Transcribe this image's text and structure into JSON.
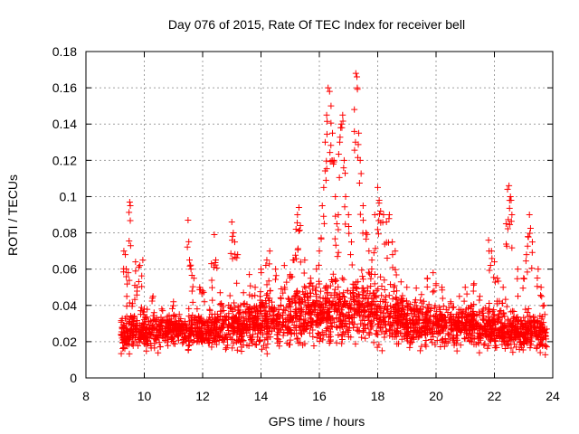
{
  "chart_data": {
    "type": "scatter",
    "title": "Day 076 of 2015, Rate Of TEC Index for receiver bell",
    "xlabel": "GPS time / hours",
    "ylabel": "ROTI / TECUs",
    "xlim": [
      8,
      24
    ],
    "ylim": [
      0,
      0.18
    ],
    "xticks": [
      8,
      10,
      12,
      14,
      16,
      18,
      20,
      22,
      24
    ],
    "yticks": [
      0,
      0.02,
      0.04,
      0.06,
      0.08,
      0.1,
      0.12,
      0.14,
      0.16,
      0.18
    ],
    "xtick_labels": [
      "8",
      "10",
      "12",
      "14",
      "16",
      "18",
      "20",
      "22",
      "24"
    ],
    "ytick_labels": [
      "0",
      "0.02",
      "0.04",
      "0.06",
      "0.08",
      "0.1",
      "0.12",
      "0.14",
      "0.16",
      "0.18"
    ],
    "grid": true,
    "marker": "+",
    "color": "#ff0000",
    "series": [
      {
        "name": "ROTI",
        "points": [
          [
            9.2,
            0.024
          ],
          [
            9.3,
            0.07
          ],
          [
            9.35,
            0.068
          ],
          [
            9.4,
            0.045
          ],
          [
            9.45,
            0.058
          ],
          [
            9.5,
            0.097
          ],
          [
            9.52,
            0.095
          ],
          [
            9.6,
            0.041
          ],
          [
            9.7,
            0.064
          ],
          [
            9.75,
            0.05
          ],
          [
            9.85,
            0.062
          ],
          [
            9.95,
            0.065
          ],
          [
            10.0,
            0.038
          ],
          [
            10.3,
            0.045
          ],
          [
            10.6,
            0.038
          ],
          [
            11.0,
            0.042
          ],
          [
            11.2,
            0.035
          ],
          [
            11.5,
            0.087
          ],
          [
            11.55,
            0.065
          ],
          [
            11.6,
            0.06
          ],
          [
            11.7,
            0.055
          ],
          [
            11.9,
            0.05
          ],
          [
            12.0,
            0.048
          ],
          [
            12.3,
            0.063
          ],
          [
            12.4,
            0.079
          ],
          [
            12.45,
            0.065
          ],
          [
            12.6,
            0.047
          ],
          [
            13.0,
            0.086
          ],
          [
            13.05,
            0.08
          ],
          [
            13.1,
            0.075
          ],
          [
            13.2,
            0.068
          ],
          [
            13.4,
            0.047
          ],
          [
            13.6,
            0.057
          ],
          [
            13.8,
            0.05
          ],
          [
            14.0,
            0.06
          ],
          [
            14.2,
            0.065
          ],
          [
            14.3,
            0.07
          ],
          [
            14.5,
            0.06
          ],
          [
            14.8,
            0.062
          ],
          [
            15.0,
            0.057
          ],
          [
            15.1,
            0.065
          ],
          [
            15.2,
            0.082
          ],
          [
            15.25,
            0.09
          ],
          [
            15.3,
            0.094
          ],
          [
            15.35,
            0.084
          ],
          [
            15.5,
            0.065
          ],
          [
            15.7,
            0.055
          ],
          [
            15.9,
            0.06
          ],
          [
            16.0,
            0.07
          ],
          [
            16.1,
            0.095
          ],
          [
            16.15,
            0.105
          ],
          [
            16.2,
            0.13
          ],
          [
            16.25,
            0.145
          ],
          [
            16.3,
            0.16
          ],
          [
            16.35,
            0.158
          ],
          [
            16.4,
            0.15
          ],
          [
            16.45,
            0.135
          ],
          [
            16.5,
            0.12
          ],
          [
            16.55,
            0.1
          ],
          [
            16.6,
            0.085
          ],
          [
            16.65,
            0.09
          ],
          [
            16.7,
            0.13
          ],
          [
            16.75,
            0.14
          ],
          [
            16.8,
            0.145
          ],
          [
            16.85,
            0.12
          ],
          [
            16.9,
            0.1
          ],
          [
            17.0,
            0.09
          ],
          [
            17.1,
            0.075
          ],
          [
            17.2,
            0.148
          ],
          [
            17.25,
            0.168
          ],
          [
            17.3,
            0.16
          ],
          [
            17.35,
            0.135
          ],
          [
            17.4,
            0.12
          ],
          [
            17.5,
            0.095
          ],
          [
            17.6,
            0.08
          ],
          [
            17.7,
            0.07
          ],
          [
            17.8,
            0.065
          ],
          [
            17.9,
            0.09
          ],
          [
            18.0,
            0.105
          ],
          [
            18.05,
            0.098
          ],
          [
            18.1,
            0.092
          ],
          [
            18.2,
            0.09
          ],
          [
            18.3,
            0.086
          ],
          [
            18.4,
            0.09
          ],
          [
            18.5,
            0.075
          ],
          [
            18.6,
            0.07
          ],
          [
            18.8,
            0.053
          ],
          [
            19.0,
            0.05
          ],
          [
            19.3,
            0.043
          ],
          [
            19.5,
            0.046
          ],
          [
            19.7,
            0.055
          ],
          [
            19.9,
            0.058
          ],
          [
            20.0,
            0.052
          ],
          [
            20.2,
            0.05
          ],
          [
            20.5,
            0.042
          ],
          [
            20.8,
            0.045
          ],
          [
            21.0,
            0.05
          ],
          [
            21.2,
            0.04
          ],
          [
            21.3,
            0.052
          ],
          [
            21.5,
            0.045
          ],
          [
            21.8,
            0.076
          ],
          [
            21.9,
            0.07
          ],
          [
            22.0,
            0.064
          ],
          [
            22.1,
            0.055
          ],
          [
            22.3,
            0.05
          ],
          [
            22.4,
            0.085
          ],
          [
            22.45,
            0.104
          ],
          [
            22.5,
            0.106
          ],
          [
            22.55,
            0.1
          ],
          [
            22.6,
            0.09
          ],
          [
            22.8,
            0.06
          ],
          [
            23.0,
            0.055
          ],
          [
            23.1,
            0.068
          ],
          [
            23.15,
            0.078
          ],
          [
            23.2,
            0.09
          ],
          [
            23.3,
            0.075
          ],
          [
            23.5,
            0.06
          ],
          [
            23.6,
            0.05
          ],
          [
            23.7,
            0.04
          ]
        ]
      }
    ],
    "baseline_band": {
      "description": "dense band of points",
      "x_range": [
        9.2,
        23.8
      ],
      "y_profile": [
        [
          9.2,
          0.012,
          0.035
        ],
        [
          10.0,
          0.012,
          0.035
        ],
        [
          11.0,
          0.012,
          0.037
        ],
        [
          12.0,
          0.012,
          0.037
        ],
        [
          13.0,
          0.012,
          0.04
        ],
        [
          14.0,
          0.012,
          0.045
        ],
        [
          15.0,
          0.012,
          0.05
        ],
        [
          16.0,
          0.012,
          0.055
        ],
        [
          17.0,
          0.012,
          0.055
        ],
        [
          18.0,
          0.012,
          0.055
        ],
        [
          19.0,
          0.012,
          0.045
        ],
        [
          20.0,
          0.012,
          0.04
        ],
        [
          21.0,
          0.012,
          0.04
        ],
        [
          22.0,
          0.012,
          0.04
        ],
        [
          23.0,
          0.012,
          0.035
        ],
        [
          23.8,
          0.01,
          0.035
        ]
      ]
    }
  }
}
